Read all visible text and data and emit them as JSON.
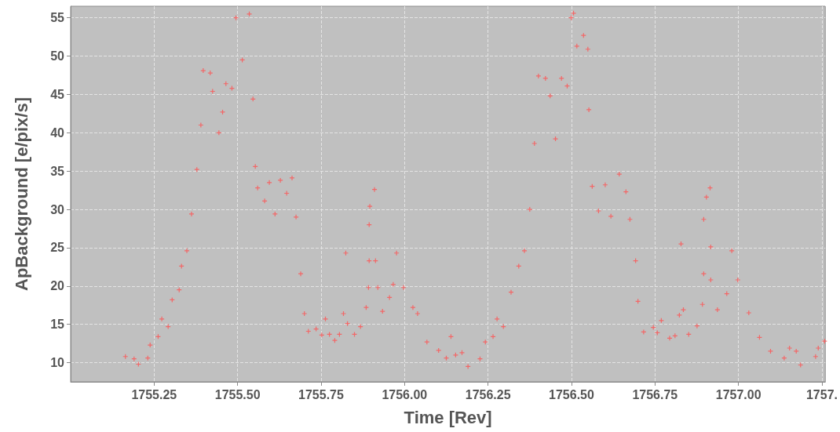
{
  "chart_data": {
    "type": "scatter",
    "xlabel": "Time [Rev]",
    "ylabel": "ApBackground [e/pix/s]",
    "marker": "cross",
    "grid": true,
    "xlim": [
      1755.0,
      1757.26
    ],
    "ylim": [
      7.5,
      56.5
    ],
    "xticks": [
      1755.25,
      {
        "value": 1755.5,
        "label": "1755.50"
      },
      1755.75,
      {
        "value": 1756,
        "label": "1756.00"
      },
      1756.25,
      {
        "value": 1756.5,
        "label": "1756.50"
      },
      1756.75,
      {
        "value": 1757,
        "label": "1757.00"
      },
      {
        "value": 1757.25,
        "label": "1757."
      }
    ],
    "yticks": [
      10,
      15,
      20,
      25,
      30,
      35,
      40,
      45,
      50,
      55
    ],
    "series": [
      {
        "color": "#ff5050",
        "x": [
          1755.164,
          1755.19,
          1755.203,
          1755.231,
          1755.238,
          1755.262,
          1755.273,
          1755.292,
          1755.304,
          1755.325,
          1755.332,
          1755.348,
          1755.362,
          1755.378,
          1755.39,
          1755.397,
          1755.418,
          1755.425,
          1755.444,
          1755.455,
          1755.465,
          1755.483,
          1755.495,
          1755.514,
          1755.535,
          1755.546,
          1755.553,
          1755.56,
          1755.581,
          1755.595,
          1755.612,
          1755.628,
          1755.647,
          1755.663,
          1755.675,
          1755.689,
          1755.7,
          1755.712,
          1755.735,
          1755.752,
          1755.763,
          1755.775,
          1755.791,
          1755.805,
          1755.817,
          1755.824,
          1755.829,
          1755.85,
          1755.868,
          1755.885,
          1755.892,
          1755.894,
          1755.894,
          1755.896,
          1755.91,
          1755.913,
          1755.92,
          1755.934,
          1755.955,
          1755.966,
          1755.976,
          1755.997,
          1756.025,
          1756.039,
          1756.067,
          1756.102,
          1756.125,
          1756.139,
          1756.153,
          1756.172,
          1756.19,
          1756.226,
          1756.242,
          1756.265,
          1756.277,
          1756.296,
          1756.319,
          1756.342,
          1756.359,
          1756.375,
          1756.389,
          1756.401,
          1756.422,
          1756.436,
          1756.452,
          1756.47,
          1756.487,
          1756.499,
          1756.506,
          1756.516,
          1756.536,
          1756.549,
          1756.552,
          1756.562,
          1756.581,
          1756.601,
          1756.618,
          1756.643,
          1756.663,
          1756.675,
          1756.692,
          1756.699,
          1756.716,
          1756.745,
          1756.757,
          1756.769,
          1756.794,
          1756.81,
          1756.823,
          1756.828,
          1756.835,
          1756.851,
          1756.876,
          1756.892,
          1756.896,
          1756.896,
          1756.904,
          1756.915,
          1756.917,
          1756.917,
          1756.937,
          1756.965,
          1756.98,
          1756.998,
          1757.031,
          1757.063,
          1757.096,
          1757.137,
          1757.153,
          1757.173,
          1757.186,
          1757.231,
          1757.239,
          1757.258
        ],
        "values": [
          10.8,
          10.5,
          9.8,
          10.6,
          12.3,
          13.4,
          15.7,
          14.7,
          18.2,
          19.5,
          22.6,
          24.6,
          29.4,
          35.2,
          41,
          48.1,
          47.8,
          45.4,
          40,
          42.7,
          46.4,
          45.8,
          55,
          49.5,
          55.5,
          44.4,
          35.6,
          32.8,
          31.1,
          33.5,
          29.4,
          33.8,
          32.1,
          34.1,
          29,
          21.6,
          16.4,
          14.1,
          14.4,
          13.6,
          15.7,
          13.7,
          12.9,
          13.7,
          16.4,
          24.3,
          15.1,
          13.7,
          14.7,
          17.2,
          19.8,
          23.3,
          28,
          30.4,
          32.6,
          23.3,
          19.8,
          16.7,
          18.5,
          20.2,
          24.3,
          19.8,
          17.2,
          16.4,
          12.7,
          11.6,
          10.6,
          13.4,
          11,
          11.3,
          9.5,
          10.5,
          12.7,
          13.4,
          15.7,
          14.7,
          19.2,
          22.6,
          24.6,
          30,
          38.6,
          47.4,
          47.1,
          44.8,
          39.2,
          47.1,
          46.1,
          55,
          55.6,
          51.3,
          52.7,
          50.9,
          43,
          33,
          29.8,
          33.2,
          29.1,
          34.6,
          32.3,
          28.7,
          23.3,
          18,
          14,
          14.6,
          13.9,
          15.5,
          13.2,
          13.5,
          16.2,
          25.5,
          16.9,
          13.7,
          14.8,
          17.6,
          21.6,
          28.7,
          31.6,
          32.8,
          25.1,
          20.8,
          16.9,
          19,
          24.6,
          20.8,
          16.5,
          13.3,
          11.5,
          10.6,
          11.9,
          11.5,
          9.7,
          10.8,
          11.9,
          12.8
        ]
      }
    ]
  }
}
